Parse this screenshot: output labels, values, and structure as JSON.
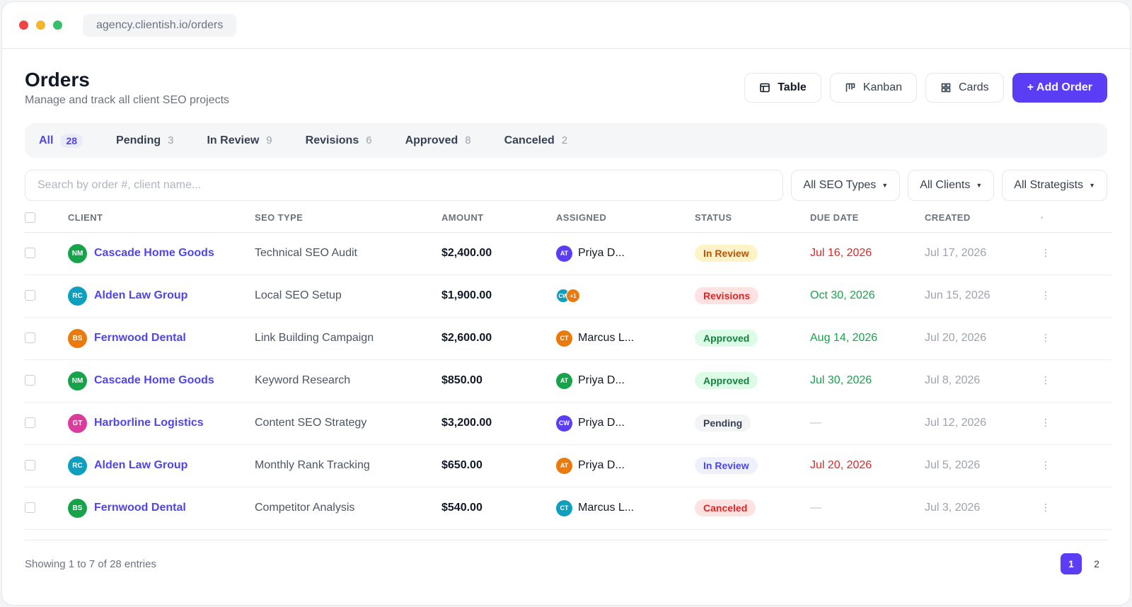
{
  "browser": {
    "url": "agency.clientish.io/orders",
    "dots": [
      "#ef4444",
      "#f59e0b",
      "#22c55e"
    ]
  },
  "header": {
    "title": "Orders",
    "subtitle": "Manage and track all client SEO projects"
  },
  "views": {
    "table": "Table",
    "kanban": "Kanban",
    "cards": "Cards",
    "add": "+ Add Order"
  },
  "tabs": [
    {
      "label": "All",
      "count": "28",
      "active": true
    },
    {
      "label": "Pending",
      "count": "3"
    },
    {
      "label": "In Review",
      "count": "9"
    },
    {
      "label": "Revisions",
      "count": "6"
    },
    {
      "label": "Approved",
      "count": "8"
    },
    {
      "label": "Canceled",
      "count": "2"
    }
  ],
  "filters": {
    "search_placeholder": "Search by order #, client name...",
    "seo_types": "All SEO Types",
    "clients": "All Clients",
    "strategists": "All Strategists"
  },
  "columns": {
    "client": "CLIENT",
    "seo_type": "SEO TYPE",
    "amount": "AMOUNT",
    "assigned": "ASSIGNED",
    "status": "STATUS",
    "due_date": "DUE DATE",
    "created": "CREATED",
    "actions": "·"
  },
  "rows": [
    {
      "client": "Cascade Home Goods",
      "initials": "NM",
      "avatar_color": "#16a34a",
      "seo_type": "Technical SEO Audit",
      "amount": "$2,400.00",
      "assignee": "Priya D...",
      "assignee_initials": "AT",
      "assignee_color": "#5b3df5",
      "status": "In Review",
      "status_bg": "#fef3c7",
      "status_fg": "#b45309",
      "due": "Jul 16, 2026",
      "due_color": "#dc2626",
      "created": "Jul 17, 2026"
    },
    {
      "client": "Alden Law Group",
      "initials": "RC",
      "avatar_color": "#0e9fbf",
      "seo_type": "Local SEO Setup",
      "amount": "$1,900.00",
      "assignee": "",
      "assignee_stack": [
        "CW",
        "+1"
      ],
      "stack_colors": [
        "#0e9fbf",
        "#ea7a0c"
      ],
      "status": "Revisions",
      "status_bg": "#fee2e2",
      "status_fg": "#dc2626",
      "due": "Oct 30, 2026",
      "due_color": "#16a34a",
      "created": "Jun 15, 2026"
    },
    {
      "client": "Fernwood Dental",
      "initials": "BS",
      "avatar_color": "#ea7a0c",
      "seo_type": "Link Building Campaign",
      "amount": "$2,600.00",
      "assignee": "Marcus L...",
      "assignee_initials": "CT",
      "assignee_color": "#ea7a0c",
      "status": "Approved",
      "status_bg": "#dcfce7",
      "status_fg": "#15803d",
      "due": "Aug 14, 2026",
      "due_color": "#16a34a",
      "created": "Jul 20, 2026"
    },
    {
      "client": "Cascade Home Goods",
      "initials": "NM",
      "avatar_color": "#16a34a",
      "seo_type": "Keyword Research",
      "amount": "$850.00",
      "assignee": "Priya D...",
      "assignee_initials": "AT",
      "assignee_color": "#16a34a",
      "status": "Approved",
      "status_bg": "#dcfce7",
      "status_fg": "#15803d",
      "due": "Jul 30, 2026",
      "due_color": "#16a34a",
      "created": "Jul 8, 2026"
    },
    {
      "client": "Harborline Logistics",
      "initials": "GT",
      "avatar_color": "#db3b9b",
      "seo_type": "Content SEO Strategy",
      "amount": "$3,200.00",
      "assignee": "Priya D...",
      "assignee_initials": "CW",
      "assignee_color": "#5b3df5",
      "status": "Pending",
      "status_bg": "#f3f4f6",
      "status_fg": "#374151",
      "due": "—",
      "due_color": "#c2c6cc",
      "created": "Jul 12, 2026"
    },
    {
      "client": "Alden Law Group",
      "initials": "RC",
      "avatar_color": "#0e9fbf",
      "seo_type": "Monthly Rank Tracking",
      "amount": "$650.00",
      "assignee": "Priya D...",
      "assignee_initials": "AT",
      "assignee_color": "#ea7a0c",
      "status": "In Review",
      "status_bg": "#eef0fb",
      "status_fg": "#4f46e5",
      "due": "Jul 20, 2026",
      "due_color": "#dc2626",
      "created": "Jul 5, 2026"
    },
    {
      "client": "Fernwood Dental",
      "initials": "BS",
      "avatar_color": "#16a34a",
      "seo_type": "Competitor Analysis",
      "amount": "$540.00",
      "assignee": "Marcus L...",
      "assignee_initials": "CT",
      "assignee_color": "#0e9fbf",
      "status": "Canceled",
      "status_bg": "#fee2e2",
      "status_fg": "#dc2626",
      "due": "—",
      "due_color": "#c2c6cc",
      "created": "Jul 3, 2026"
    }
  ],
  "footer": {
    "showing": "Showing 1 to 7 of 28 entries",
    "pages": [
      "1",
      "2"
    ]
  },
  "colors": {
    "accent": "#5b3df5",
    "link": "#4f46e5"
  }
}
